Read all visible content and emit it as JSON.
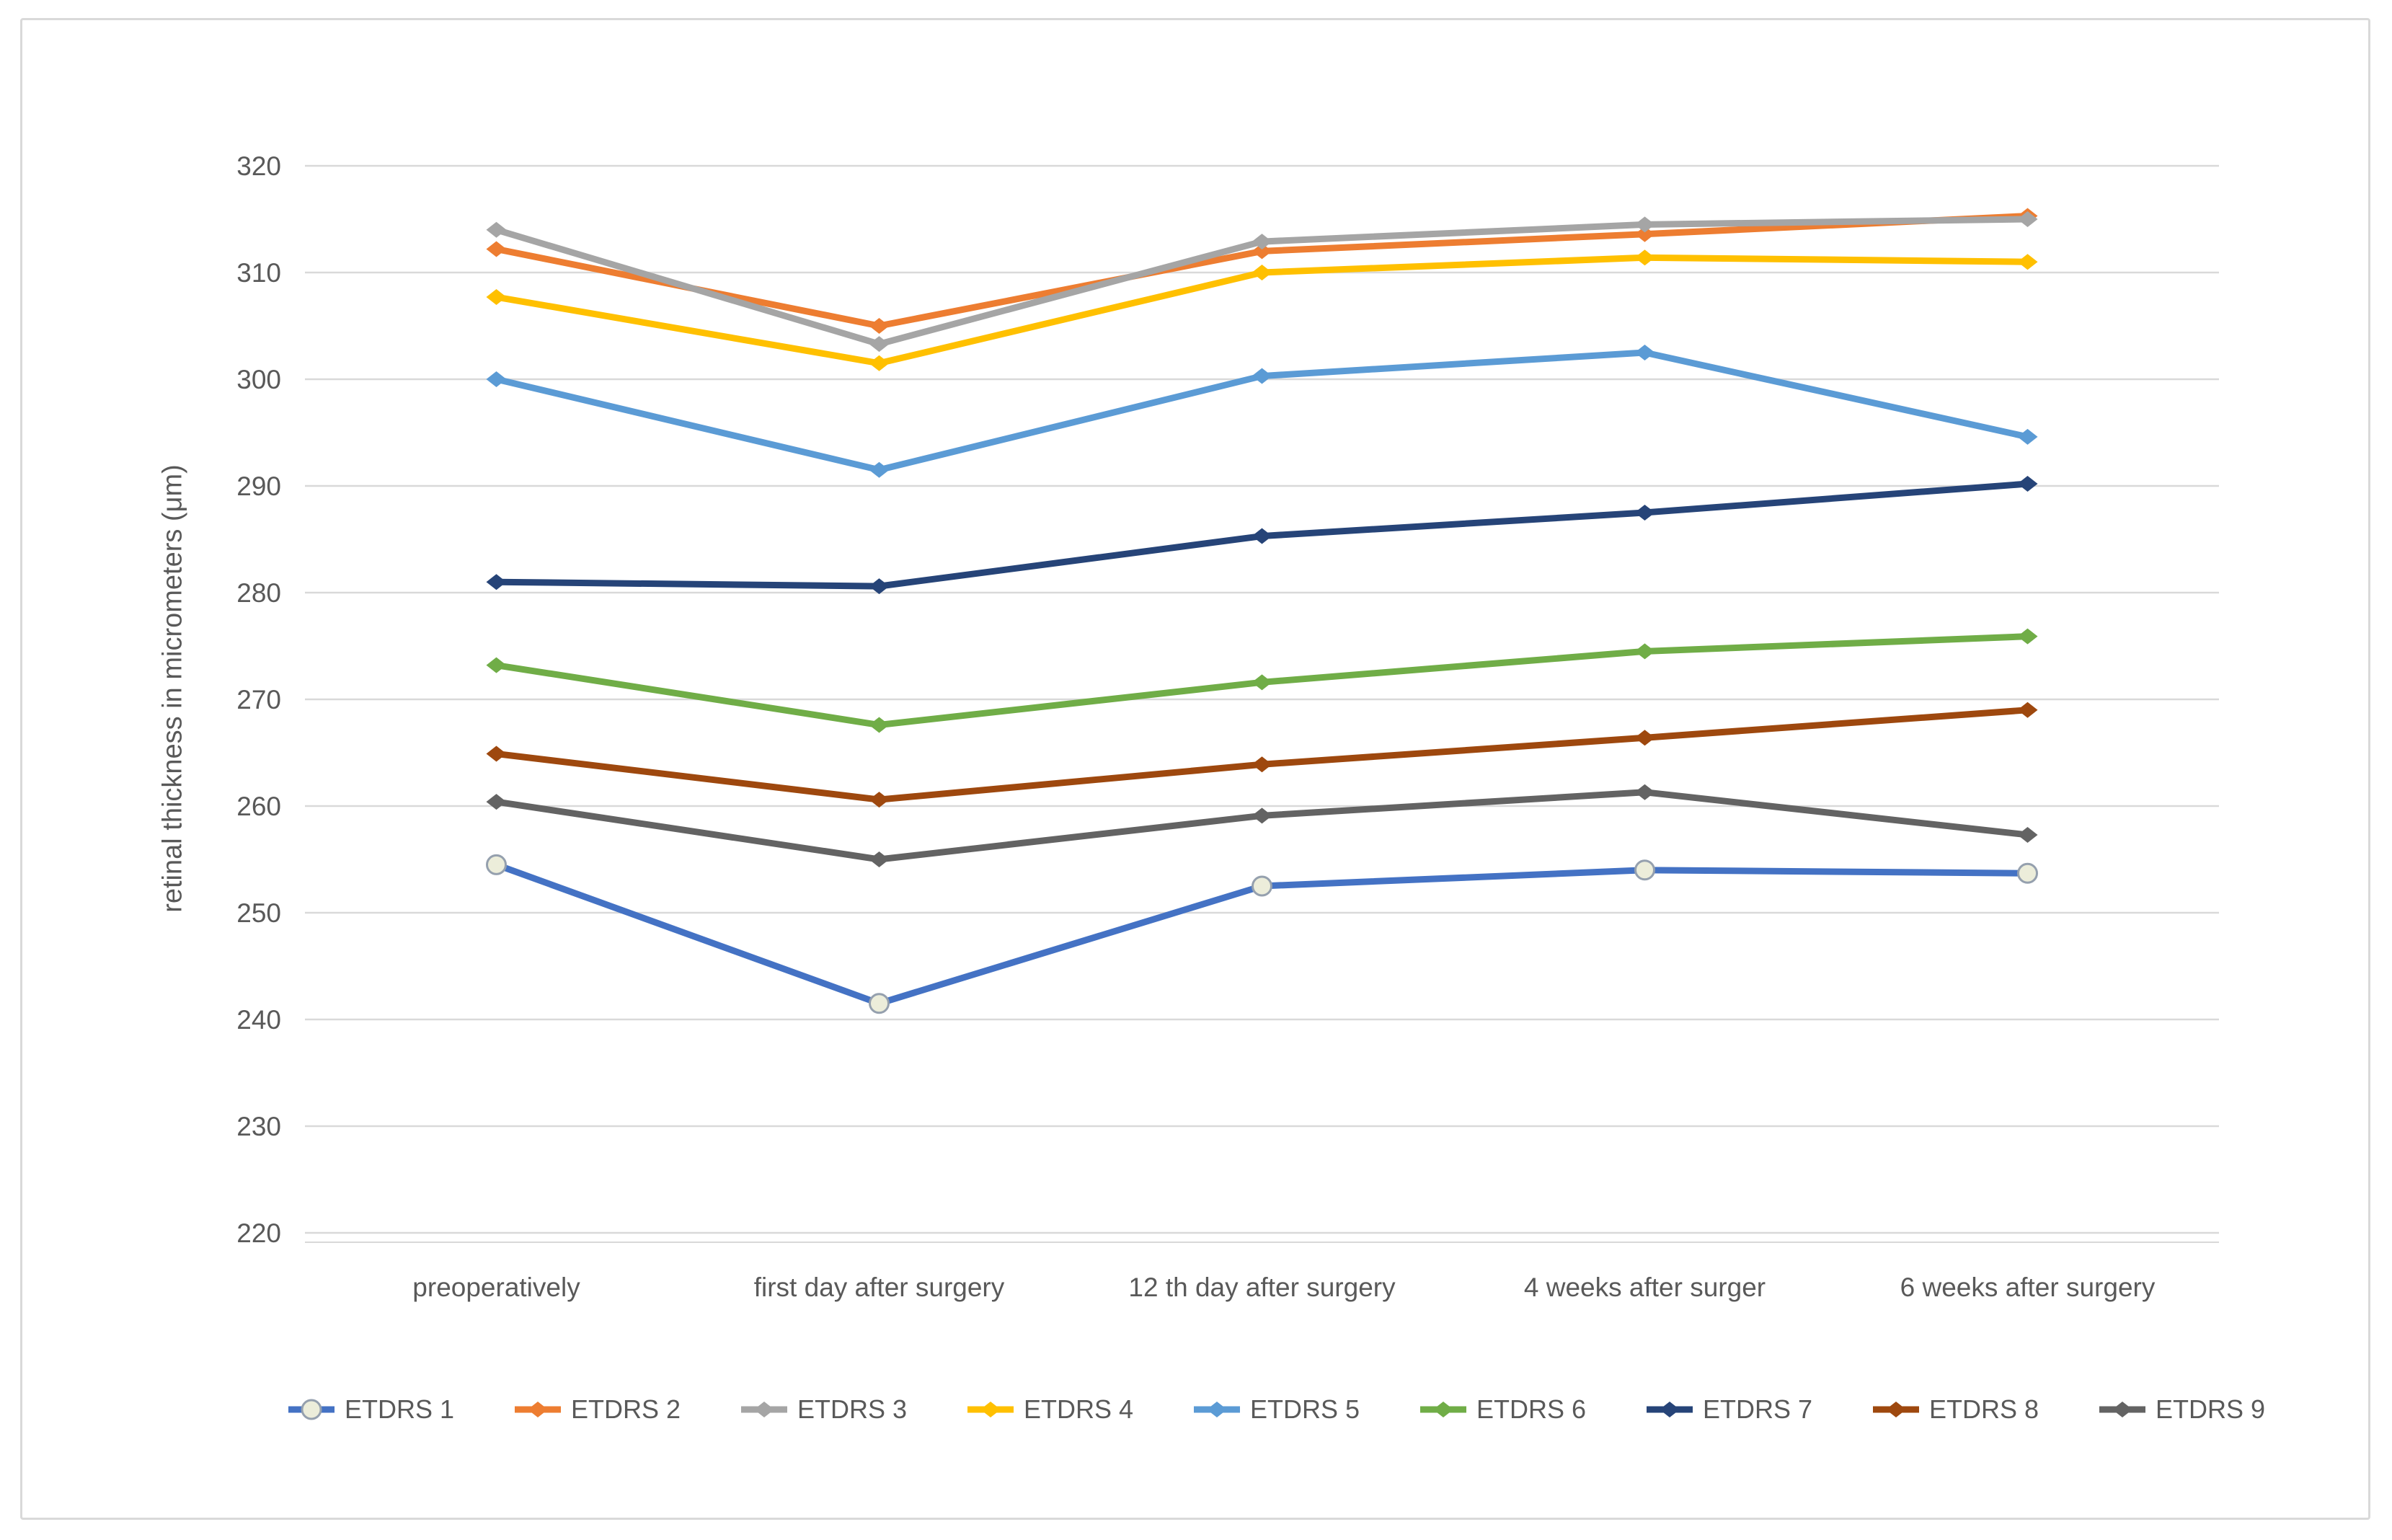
{
  "chart_data": {
    "type": "line",
    "title": "",
    "xlabel": "",
    "ylabel": "retinal thickness in micrometers (μm)",
    "ylim": [
      220,
      320
    ],
    "yticks": [
      320,
      310,
      300,
      290,
      280,
      270,
      260,
      250,
      240,
      230,
      220
    ],
    "grid": true,
    "legend_position": "bottom",
    "gridline_color": "#d9d9d9",
    "text_color": "#595959",
    "categories": [
      "preoperatively",
      "first day after surgery",
      "12 th day after surgery",
      "4 weeks after surger",
      "6 weeks after surgery"
    ],
    "series": [
      {
        "name": "ETDRS 1",
        "color": "#4472C4",
        "marker": "circle-light",
        "marker_fill": "#ecedda",
        "marker_stroke": "#95a0ae",
        "values": [
          254.5,
          241.5,
          252.5,
          254.0,
          253.7
        ]
      },
      {
        "name": "ETDRS 2",
        "color": "#ED7D31",
        "marker": "diamond",
        "values": [
          312.2,
          305.0,
          312.0,
          313.6,
          315.3
        ]
      },
      {
        "name": "ETDRS 3",
        "color": "#A5A5A5",
        "marker": "diamond",
        "values": [
          314.0,
          303.3,
          312.9,
          314.5,
          315.0
        ]
      },
      {
        "name": "ETDRS 4",
        "color": "#FFC000",
        "marker": "diamond",
        "values": [
          307.7,
          301.5,
          310.0,
          311.4,
          311.0
        ]
      },
      {
        "name": "ETDRS 5",
        "color": "#5B9BD5",
        "marker": "diamond",
        "values": [
          300.0,
          291.5,
          300.3,
          302.5,
          294.6
        ]
      },
      {
        "name": "ETDRS 6",
        "color": "#70AD47",
        "marker": "diamond",
        "values": [
          273.2,
          267.6,
          271.6,
          274.5,
          275.9
        ]
      },
      {
        "name": "ETDRS 7",
        "color": "#264478",
        "marker": "diamond",
        "values": [
          281.0,
          280.6,
          285.3,
          287.5,
          290.2
        ]
      },
      {
        "name": "ETDRS 8",
        "color": "#9E480E",
        "marker": "diamond",
        "values": [
          264.9,
          260.6,
          263.9,
          266.4,
          269.0
        ]
      },
      {
        "name": "ETDRS 9",
        "color": "#636363",
        "marker": "diamond",
        "values": [
          260.4,
          255.0,
          259.1,
          261.3,
          257.3
        ]
      }
    ]
  }
}
